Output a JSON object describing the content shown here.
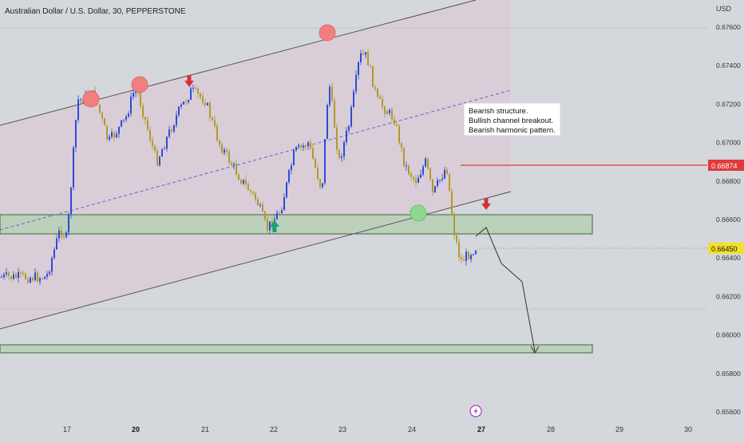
{
  "header": {
    "symbol_title": "Australian Dollar / U.S. Dollar, 30, PEPPERSTONE"
  },
  "price_axis": {
    "currency": "USD",
    "ticks": [
      "0.67600",
      "0.67400",
      "0.67200",
      "0.67000",
      "0.66800",
      "0.66600",
      "0.66400",
      "0.66200",
      "0.66000",
      "0.65800",
      "0.65600"
    ],
    "tick_values": [
      0.676,
      0.674,
      0.672,
      0.67,
      0.668,
      0.666,
      0.664,
      0.662,
      0.66,
      0.658,
      0.656
    ],
    "target_label": "0.66874",
    "current_label": "0.66450"
  },
  "time_axis": {
    "ticks": [
      "17",
      "20",
      "21",
      "22",
      "23",
      "24",
      "27",
      "28",
      "29",
      "30"
    ],
    "bold_ticks": [
      "20",
      "27"
    ]
  },
  "annotation": {
    "lines": [
      "Bearish structure.",
      "Bullish channel breakout.",
      "Bearish harmonic pattern."
    ]
  },
  "colors": {
    "background": "#d4d7dc",
    "channel_fill": "#d8cdd6",
    "zone_fill": "#b9d1b9",
    "zone_border": "#2e5a2e",
    "bull_candle": "#2e4bd6",
    "bear_candle": "#b09a2a",
    "red_line": "#e03a3a",
    "current_price_badge": "#f2e02a",
    "midline": "#4a6ae0"
  },
  "chart_data": {
    "type": "candlestick",
    "title": "Australian Dollar / U.S. Dollar, 30, PEPPERSTONE",
    "xlabel": "",
    "ylabel": "USD",
    "ylim": [
      0.6556,
      0.6772
    ],
    "x_categories": [
      "17",
      "20",
      "21",
      "22",
      "23",
      "24",
      "27",
      "28",
      "29",
      "30"
    ],
    "grid": false,
    "price_path_anchors": [
      {
        "x": "16.7",
        "y": 0.663
      },
      {
        "x": "16.9",
        "y": 0.6655
      },
      {
        "x": "17.0",
        "y": 0.665
      },
      {
        "x": "17.15",
        "y": 0.6722
      },
      {
        "x": "17.4",
        "y": 0.6725
      },
      {
        "x": "17.6",
        "y": 0.67
      },
      {
        "x": "17.85",
        "y": 0.6712
      },
      {
        "x": "20.0",
        "y": 0.673
      },
      {
        "x": "20.3",
        "y": 0.669
      },
      {
        "x": "20.6",
        "y": 0.6715
      },
      {
        "x": "20.8",
        "y": 0.6727
      },
      {
        "x": "21.0",
        "y": 0.6722
      },
      {
        "x": "21.2",
        "y": 0.67
      },
      {
        "x": "21.5",
        "y": 0.6682
      },
      {
        "x": "21.75",
        "y": 0.667
      },
      {
        "x": "21.9",
        "y": 0.6655
      },
      {
        "x": "22.1",
        "y": 0.6665
      },
      {
        "x": "22.3",
        "y": 0.6695
      },
      {
        "x": "22.5",
        "y": 0.67
      },
      {
        "x": "22.7",
        "y": 0.6675
      },
      {
        "x": "22.8",
        "y": 0.6733
      },
      {
        "x": "22.95",
        "y": 0.669
      },
      {
        "x": "23.1",
        "y": 0.671
      },
      {
        "x": "23.25",
        "y": 0.6745
      },
      {
        "x": "23.35",
        "y": 0.6745
      },
      {
        "x": "23.5",
        "y": 0.6722
      },
      {
        "x": "23.75",
        "y": 0.6712
      },
      {
        "x": "23.9",
        "y": 0.6688
      },
      {
        "x": "24.05",
        "y": 0.668
      },
      {
        "x": "24.2",
        "y": 0.669
      },
      {
        "x": "24.3",
        "y": 0.6673
      },
      {
        "x": "24.5",
        "y": 0.6688
      },
      {
        "x": "24.6",
        "y": 0.6655
      },
      {
        "x": "24.7",
        "y": 0.6638
      },
      {
        "x": "24.9",
        "y": 0.6645
      },
      {
        "x": "27.0",
        "y": 0.6648
      }
    ],
    "resistance_line": {
      "from": {
        "x": "16.7",
        "y": 0.6704
      },
      "to": {
        "x": "27.0",
        "y": 0.6792
      }
    },
    "channel_midline": {
      "from": {
        "x": "16.7",
        "y": 0.6653
      },
      "to": {
        "x": "27.3",
        "y": 0.6729
      }
    },
    "support_line": {
      "from": {
        "x": "16.7",
        "y": 0.6618
      },
      "to": {
        "x": "27.3",
        "y": 0.6674
      }
    },
    "demand_zone_1": {
      "from": 0.66525,
      "to": 0.66625
    },
    "demand_zone_2": {
      "from": 0.65935,
      "to": 0.65955
    },
    "target_level": 0.66874,
    "current_price": 0.6645,
    "projection_path": [
      {
        "x": "27.0",
        "y": 0.6657
      },
      {
        "x": "27.15",
        "y": 0.6642
      },
      {
        "x": "27.4",
        "y": 0.6629
      },
      {
        "x": "27.6",
        "y": 0.6619
      },
      {
        "x": "27.8",
        "y": 0.6594
      }
    ]
  }
}
